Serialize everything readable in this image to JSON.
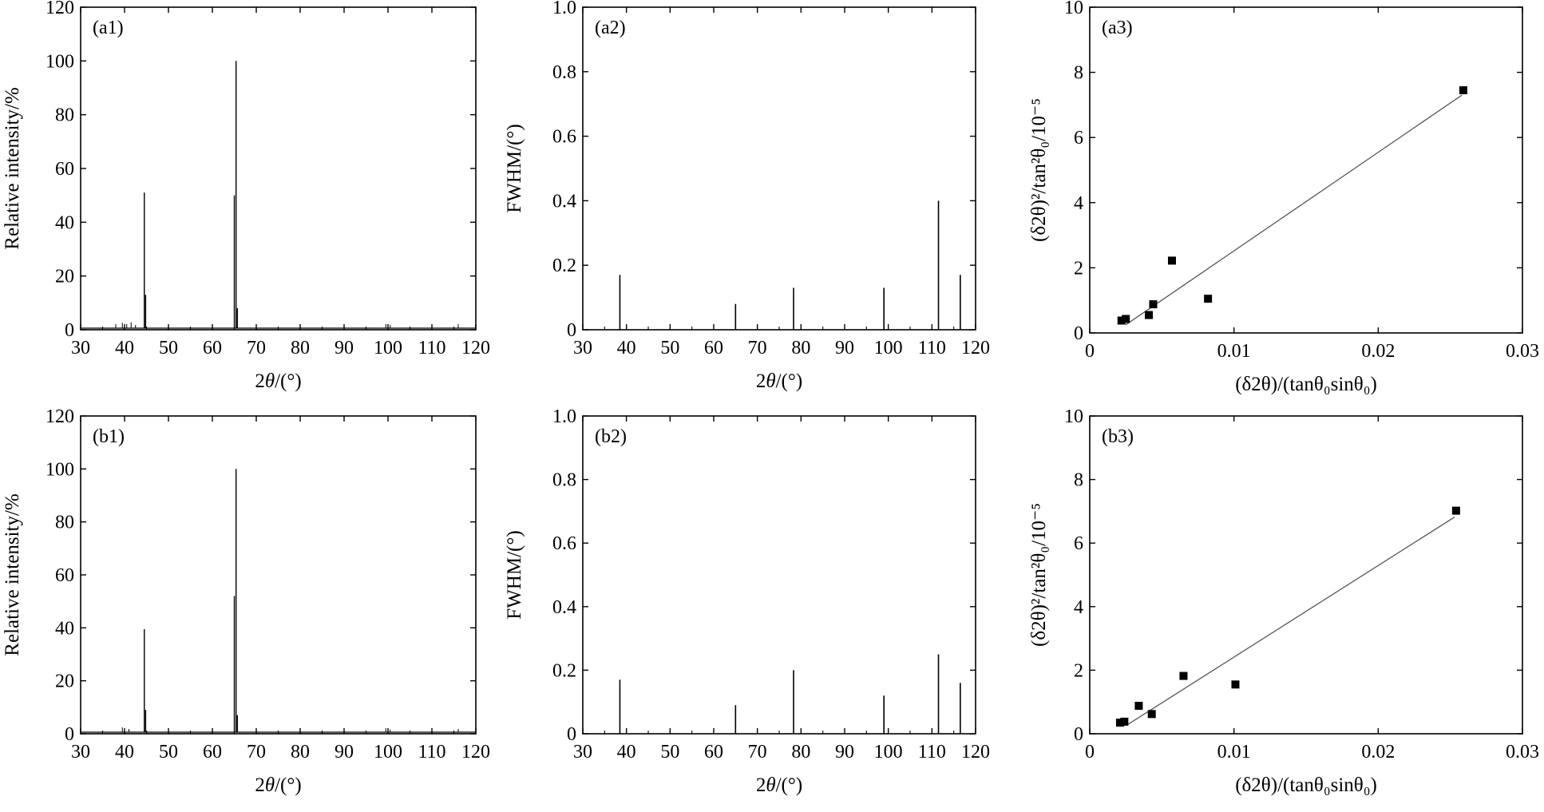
{
  "chart_data": [
    {
      "id": "a1",
      "type": "line",
      "panel_label": "(a1)",
      "xlabel_pre": "2",
      "xlabel_sym": "θ",
      "xlabel_post": "/(°)",
      "ylabel": "Relative intensity/%",
      "xlim": [
        30,
        120
      ],
      "ylim": [
        0,
        120
      ],
      "xticks": [
        30,
        40,
        50,
        60,
        70,
        80,
        90,
        100,
        110,
        120
      ],
      "yticks": [
        0,
        20,
        40,
        60,
        80,
        100,
        120
      ],
      "peaks": [
        {
          "x": 44.5,
          "y": 51
        },
        {
          "x": 44.8,
          "y": 13
        },
        {
          "x": 65.0,
          "y": 50
        },
        {
          "x": 65.4,
          "y": 100
        },
        {
          "x": 65.7,
          "y": 8
        }
      ],
      "noise_peaks": [
        {
          "x": 38,
          "y": 1.5
        },
        {
          "x": 39.5,
          "y": 2
        },
        {
          "x": 40.5,
          "y": 1.5
        },
        {
          "x": 41.5,
          "y": 2.2
        },
        {
          "x": 42.5,
          "y": 1.2
        },
        {
          "x": 99.5,
          "y": 1.5
        },
        {
          "x": 100.5,
          "y": 1.2
        },
        {
          "x": 116,
          "y": 1.5
        }
      ]
    },
    {
      "id": "a2",
      "type": "bar",
      "panel_label": "(a2)",
      "xlabel_pre": "2",
      "xlabel_sym": "θ",
      "xlabel_post": "/(°)",
      "ylabel": "FWHM/(°)",
      "xlim": [
        30,
        120
      ],
      "ylim": [
        0,
        1.0
      ],
      "xticks": [
        30,
        40,
        50,
        60,
        70,
        80,
        90,
        100,
        110,
        120
      ],
      "yticks": [
        0,
        0.2,
        0.4,
        0.6,
        0.8,
        1.0
      ],
      "ytick_labels": [
        "0",
        "0.2",
        "0.4",
        "0.6",
        "0.8",
        "1.0"
      ],
      "x": [
        38.5,
        65.0,
        78.3,
        99.0,
        111.5,
        116.5
      ],
      "values": [
        0.17,
        0.08,
        0.13,
        0.13,
        0.4,
        0.17
      ]
    },
    {
      "id": "a3",
      "type": "scatter",
      "panel_label": "(a3)",
      "xlabel": "(δ2θ)/(tanθ₀sinθ₀)",
      "ylabel": "(δ2θ)²/tan²θ₀/10⁻⁵",
      "xlim": [
        0,
        0.03
      ],
      "ylim": [
        0,
        10
      ],
      "xticks": [
        0,
        0.01,
        0.02,
        0.03
      ],
      "xtick_labels": [
        "0",
        "0.01",
        "0.02",
        "0.03"
      ],
      "yticks": [
        0,
        2,
        4,
        6,
        8,
        10
      ],
      "x": [
        0.0022,
        0.0025,
        0.0041,
        0.0044,
        0.0057,
        0.0082,
        0.0259
      ],
      "y": [
        0.38,
        0.43,
        0.55,
        0.88,
        2.22,
        1.05,
        7.45
      ],
      "fit": {
        "x": [
          0.0025,
          0.0258
        ],
        "y": [
          0.25,
          7.3
        ]
      }
    },
    {
      "id": "b1",
      "type": "line",
      "panel_label": "(b1)",
      "xlabel_pre": "2",
      "xlabel_sym": "θ",
      "xlabel_post": "/(°)",
      "ylabel": "Relative intensity/%",
      "xlim": [
        30,
        120
      ],
      "ylim": [
        0,
        120
      ],
      "xticks": [
        30,
        40,
        50,
        60,
        70,
        80,
        90,
        100,
        110,
        120
      ],
      "yticks": [
        0,
        20,
        40,
        60,
        80,
        100,
        120
      ],
      "peaks": [
        {
          "x": 44.5,
          "y": 39.5
        },
        {
          "x": 44.8,
          "y": 9
        },
        {
          "x": 65.0,
          "y": 52
        },
        {
          "x": 65.4,
          "y": 100
        },
        {
          "x": 65.7,
          "y": 7
        }
      ],
      "noise_peaks": [
        {
          "x": 39.5,
          "y": 1.8
        },
        {
          "x": 41,
          "y": 1.2
        },
        {
          "x": 99.5,
          "y": 1.5
        },
        {
          "x": 100.5,
          "y": 1.0
        },
        {
          "x": 116,
          "y": 1.2
        }
      ]
    },
    {
      "id": "b2",
      "type": "bar",
      "panel_label": "(b2)",
      "xlabel_pre": "2",
      "xlabel_sym": "θ",
      "xlabel_post": "/(°)",
      "ylabel": "FWHM/(°)",
      "xlim": [
        30,
        120
      ],
      "ylim": [
        0,
        1.0
      ],
      "xticks": [
        30,
        40,
        50,
        60,
        70,
        80,
        90,
        100,
        110,
        120
      ],
      "yticks": [
        0,
        0.2,
        0.4,
        0.6,
        0.8,
        1.0
      ],
      "ytick_labels": [
        "0",
        "0.2",
        "0.4",
        "0.6",
        "0.8",
        "1.0"
      ],
      "x": [
        38.5,
        65.0,
        78.3,
        99.0,
        111.5,
        116.5
      ],
      "values": [
        0.17,
        0.09,
        0.2,
        0.12,
        0.25,
        0.16
      ]
    },
    {
      "id": "b3",
      "type": "scatter",
      "panel_label": "(b3)",
      "xlabel": "(δ2θ)/(tanθ₀sinθ₀)",
      "ylabel": "(δ2θ)²/tan²θ₀/10⁻⁵",
      "xlim": [
        0,
        0.03
      ],
      "ylim": [
        0,
        10
      ],
      "xticks": [
        0,
        0.01,
        0.02,
        0.03
      ],
      "xtick_labels": [
        "0",
        "0.01",
        "0.02",
        "0.03"
      ],
      "yticks": [
        0,
        2,
        4,
        6,
        8,
        10
      ],
      "x": [
        0.0021,
        0.0024,
        0.0034,
        0.0043,
        0.0065,
        0.0101,
        0.0254
      ],
      "y": [
        0.35,
        0.38,
        0.88,
        0.62,
        1.82,
        1.55,
        7.02
      ],
      "fit": {
        "x": [
          0.0026,
          0.0253
        ],
        "y": [
          0.28,
          6.82
        ]
      }
    }
  ]
}
